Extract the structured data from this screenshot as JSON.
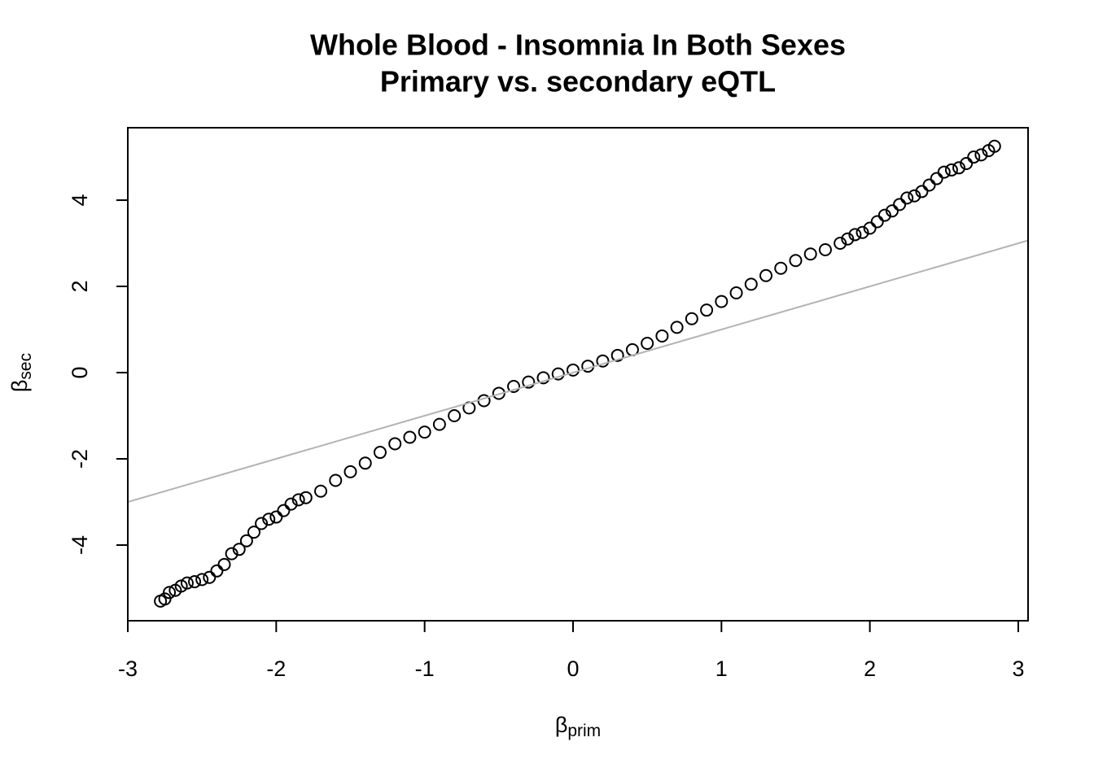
{
  "chart_data": {
    "type": "scatter",
    "title": "Whole Blood - Insomnia In Both Sexes",
    "subtitle": "Primary vs. secondary eQTL",
    "xlabel": {
      "symbol": "β",
      "subscript": "prim"
    },
    "ylabel": {
      "symbol": "β",
      "subscript": "sec"
    },
    "x": [
      -2.78,
      -2.75,
      -2.72,
      -2.68,
      -2.64,
      -2.6,
      -2.55,
      -2.5,
      -2.45,
      -2.4,
      -2.35,
      -2.3,
      -2.25,
      -2.2,
      -2.15,
      -2.1,
      -2.05,
      -2.0,
      -1.95,
      -1.9,
      -1.85,
      -1.8,
      -1.7,
      -1.6,
      -1.5,
      -1.4,
      -1.3,
      -1.2,
      -1.1,
      -1.0,
      -0.9,
      -0.8,
      -0.7,
      -0.6,
      -0.5,
      -0.4,
      -0.3,
      -0.2,
      -0.1,
      0,
      0.1,
      0.2,
      0.3,
      0.4,
      0.5,
      0.6,
      0.7,
      0.8,
      0.9,
      1.0,
      1.1,
      1.2,
      1.3,
      1.4,
      1.5,
      1.6,
      1.7,
      1.8,
      1.85,
      1.9,
      1.95,
      2.0,
      2.05,
      2.1,
      2.15,
      2.2,
      2.25,
      2.3,
      2.35,
      2.4,
      2.45,
      2.5,
      2.55,
      2.6,
      2.65,
      2.7,
      2.75,
      2.8,
      2.84
    ],
    "values": [
      -5.3,
      -5.25,
      -5.1,
      -5.05,
      -4.95,
      -4.88,
      -4.85,
      -4.8,
      -4.75,
      -4.6,
      -4.45,
      -4.2,
      -4.1,
      -3.9,
      -3.7,
      -3.5,
      -3.4,
      -3.35,
      -3.2,
      -3.05,
      -2.95,
      -2.9,
      -2.75,
      -2.5,
      -2.3,
      -2.1,
      -1.85,
      -1.65,
      -1.5,
      -1.38,
      -1.2,
      -1.0,
      -0.82,
      -0.65,
      -0.48,
      -0.32,
      -0.22,
      -0.12,
      -0.03,
      0.06,
      0.15,
      0.27,
      0.4,
      0.53,
      0.68,
      0.85,
      1.05,
      1.25,
      1.45,
      1.65,
      1.85,
      2.05,
      2.25,
      2.42,
      2.6,
      2.75,
      2.85,
      3.0,
      3.1,
      3.2,
      3.25,
      3.35,
      3.5,
      3.65,
      3.75,
      3.9,
      4.05,
      4.1,
      4.2,
      4.35,
      4.5,
      4.65,
      4.7,
      4.75,
      4.85,
      5.0,
      5.05,
      5.15,
      5.25
    ],
    "color": "#000000",
    "reference_line": {
      "slope": 1,
      "intercept": 0,
      "color": "#b3b3b3"
    },
    "xlim": [
      -3.0,
      3.066
    ],
    "ylim": [
      -5.755,
      5.68
    ],
    "xticks": [
      -3,
      -2,
      -1,
      0,
      1,
      2,
      3
    ],
    "yticks": [
      -4,
      -2,
      0,
      2,
      4
    ],
    "grid": false
  }
}
